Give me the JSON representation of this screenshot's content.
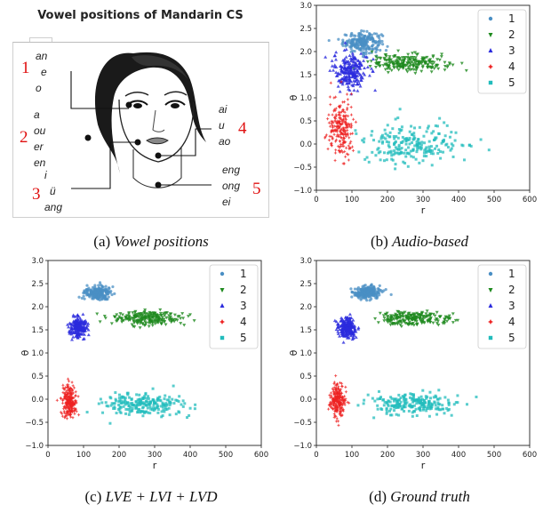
{
  "figure": {
    "captions": {
      "a": {
        "prefix": "(a) ",
        "text": "Vowel positions"
      },
      "b": {
        "prefix": "(b) ",
        "text": "Audio-based"
      },
      "c": {
        "prefix": "(c) ",
        "text": "LVE + LVI + LVD"
      },
      "d": {
        "prefix": "(d) ",
        "text": "Ground truth"
      }
    },
    "vowel_panel": {
      "title": "Vowel positions of Mandarin CS",
      "groups": [
        {
          "num": "1",
          "vowels": [
            "an",
            "e",
            "o"
          ]
        },
        {
          "num": "2",
          "vowels": [
            "a",
            "ou",
            "er",
            "en"
          ]
        },
        {
          "num": "3",
          "vowels": [
            "i",
            "ü",
            "ang"
          ]
        },
        {
          "num": "4",
          "vowels": [
            "ai",
            "u",
            "ao"
          ]
        },
        {
          "num": "5",
          "vowels": [
            "eng",
            "ong",
            "ei"
          ]
        }
      ]
    },
    "colors": {
      "1": "#4a8fc4",
      "2": "#1e8a1e",
      "3": "#2b2bdd",
      "4": "#ee2222",
      "5": "#22bcbc"
    }
  },
  "chart_data": [
    {
      "type": "scatter",
      "panel": "b",
      "xlabel": "r",
      "ylabel": "θ",
      "xlim": [
        0,
        600
      ],
      "ylim": [
        -1.0,
        3.0
      ],
      "xticks": [
        "0",
        "100",
        "200",
        "300",
        "400",
        "500",
        "600"
      ],
      "yticks": [
        "−1.0",
        "−0.5",
        "0.0",
        "0.5",
        "1.0",
        "1.5",
        "2.0",
        "2.5",
        "3.0"
      ],
      "legend": [
        "1",
        "2",
        "3",
        "4",
        "5"
      ],
      "legend_position": "top-right",
      "series": [
        {
          "name": "1",
          "center": [
            130,
            2.2
          ],
          "spread": [
            45,
            0.18
          ]
        },
        {
          "name": "2",
          "center": [
            260,
            1.75
          ],
          "spread": [
            90,
            0.15
          ]
        },
        {
          "name": "3",
          "center": [
            95,
            1.6
          ],
          "spread": [
            40,
            0.35
          ]
        },
        {
          "name": "4",
          "center": [
            70,
            0.3
          ],
          "spread": [
            30,
            0.55
          ]
        },
        {
          "name": "5",
          "center": [
            270,
            0.0
          ],
          "spread": [
            130,
            0.35
          ]
        }
      ]
    },
    {
      "type": "scatter",
      "panel": "c",
      "xlabel": "r",
      "ylabel": "θ",
      "xlim": [
        0,
        600
      ],
      "ylim": [
        -1.0,
        3.0
      ],
      "xticks": [
        "0",
        "100",
        "200",
        "300",
        "400",
        "500",
        "600"
      ],
      "yticks": [
        "−1.0",
        "−0.5",
        "0.0",
        "0.5",
        "1.0",
        "1.5",
        "2.0",
        "2.5",
        "3.0"
      ],
      "legend": [
        "1",
        "2",
        "3",
        "4",
        "5"
      ],
      "legend_position": "top-right",
      "series": [
        {
          "name": "1",
          "center": [
            140,
            2.3
          ],
          "spread": [
            30,
            0.12
          ]
        },
        {
          "name": "2",
          "center": [
            275,
            1.75
          ],
          "spread": [
            75,
            0.12
          ]
        },
        {
          "name": "3",
          "center": [
            85,
            1.55
          ],
          "spread": [
            20,
            0.18
          ]
        },
        {
          "name": "4",
          "center": [
            60,
            -0.05
          ],
          "spread": [
            17,
            0.3
          ]
        },
        {
          "name": "5",
          "center": [
            270,
            -0.1
          ],
          "spread": [
            100,
            0.2
          ]
        }
      ]
    },
    {
      "type": "scatter",
      "panel": "d",
      "xlabel": "r",
      "ylabel": "θ",
      "xlim": [
        0,
        600
      ],
      "ylim": [
        -1.0,
        3.0
      ],
      "xticks": [
        "0",
        "100",
        "200",
        "300",
        "400",
        "500",
        "600"
      ],
      "yticks": [
        "−1.0",
        "−0.5",
        "0.0",
        "0.5",
        "1.0",
        "1.5",
        "2.0",
        "2.5",
        "3.0"
      ],
      "legend": [
        "1",
        "2",
        "3",
        "4",
        "5"
      ],
      "legend_position": "top-right",
      "series": [
        {
          "name": "1",
          "center": [
            140,
            2.3
          ],
          "spread": [
            30,
            0.12
          ]
        },
        {
          "name": "2",
          "center": [
            275,
            1.75
          ],
          "spread": [
            75,
            0.12
          ]
        },
        {
          "name": "3",
          "center": [
            85,
            1.55
          ],
          "spread": [
            20,
            0.18
          ]
        },
        {
          "name": "4",
          "center": [
            60,
            -0.05
          ],
          "spread": [
            17,
            0.3
          ]
        },
        {
          "name": "5",
          "center": [
            270,
            -0.1
          ],
          "spread": [
            100,
            0.2
          ]
        }
      ]
    }
  ]
}
